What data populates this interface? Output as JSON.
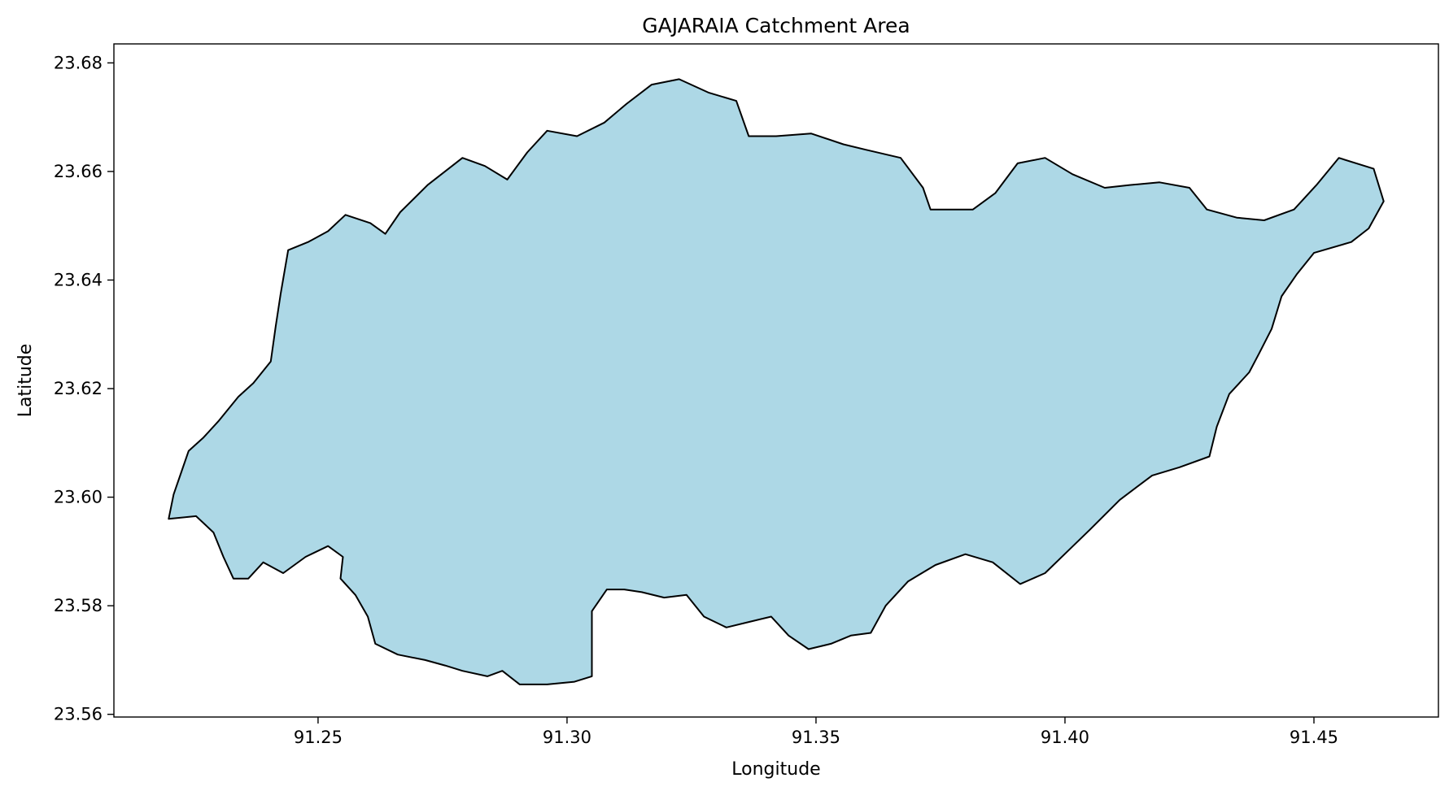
{
  "chart_data": {
    "type": "map",
    "title": "GAJARAIA Catchment Area",
    "xlabel": "Longitude",
    "ylabel": "Latitude",
    "xlim": [
      91.209,
      91.475
    ],
    "ylim": [
      23.5595,
      23.6835
    ],
    "xticks": [
      91.25,
      91.3,
      91.35,
      91.4,
      91.45
    ],
    "xtick_labels": [
      "91.25",
      "91.30",
      "91.35",
      "91.40",
      "91.45"
    ],
    "yticks": [
      23.56,
      23.58,
      23.6,
      23.62,
      23.64,
      23.66,
      23.68
    ],
    "ytick_labels": [
      "23.56",
      "23.58",
      "23.60",
      "23.62",
      "23.64",
      "23.66",
      "23.68"
    ],
    "grid": false,
    "colors": {
      "fill": "#add8e6",
      "edge": "#000000"
    },
    "boundary": [
      [
        91.22,
        23.596
      ],
      [
        91.221,
        23.6005
      ],
      [
        91.2225,
        23.6045
      ],
      [
        91.224,
        23.6085
      ],
      [
        91.227,
        23.611
      ],
      [
        91.23,
        23.614
      ],
      [
        91.234,
        23.6185
      ],
      [
        91.237,
        23.621
      ],
      [
        91.2405,
        23.625
      ],
      [
        91.2415,
        23.6315
      ],
      [
        91.2425,
        23.6375
      ],
      [
        91.244,
        23.6455
      ],
      [
        91.248,
        23.647
      ],
      [
        91.252,
        23.649
      ],
      [
        91.2555,
        23.652
      ],
      [
        91.2605,
        23.6505
      ],
      [
        91.2635,
        23.6485
      ],
      [
        91.2665,
        23.6525
      ],
      [
        91.272,
        23.6575
      ],
      [
        91.279,
        23.6625
      ],
      [
        91.2835,
        23.661
      ],
      [
        91.288,
        23.6585
      ],
      [
        91.292,
        23.6635
      ],
      [
        91.296,
        23.6675
      ],
      [
        91.302,
        23.6665
      ],
      [
        91.3075,
        23.669
      ],
      [
        91.312,
        23.6725
      ],
      [
        91.317,
        23.676
      ],
      [
        91.3225,
        23.677
      ],
      [
        91.3285,
        23.6745
      ],
      [
        91.334,
        23.673
      ],
      [
        91.3365,
        23.6665
      ],
      [
        91.342,
        23.6665
      ],
      [
        91.349,
        23.667
      ],
      [
        91.3555,
        23.665
      ],
      [
        91.36,
        23.664
      ],
      [
        91.367,
        23.6625
      ],
      [
        91.3715,
        23.657
      ],
      [
        91.373,
        23.653
      ],
      [
        91.3815,
        23.653
      ],
      [
        91.386,
        23.656
      ],
      [
        91.3905,
        23.6615
      ],
      [
        91.396,
        23.6625
      ],
      [
        91.4015,
        23.6595
      ],
      [
        91.408,
        23.657
      ],
      [
        91.413,
        23.6575
      ],
      [
        91.419,
        23.658
      ],
      [
        91.425,
        23.657
      ],
      [
        91.4285,
        23.653
      ],
      [
        91.4345,
        23.6515
      ],
      [
        91.44,
        23.651
      ],
      [
        91.446,
        23.653
      ],
      [
        91.4505,
        23.6575
      ],
      [
        91.455,
        23.6625
      ],
      [
        91.462,
        23.6605
      ],
      [
        91.464,
        23.6545
      ],
      [
        91.461,
        23.6495
      ],
      [
        91.4575,
        23.647
      ],
      [
        91.45,
        23.645
      ],
      [
        91.4465,
        23.641
      ],
      [
        91.4435,
        23.637
      ],
      [
        91.4415,
        23.631
      ],
      [
        91.439,
        23.6265
      ],
      [
        91.437,
        23.623
      ],
      [
        91.433,
        23.619
      ],
      [
        91.4305,
        23.613
      ],
      [
        91.429,
        23.6075
      ],
      [
        91.423,
        23.6055
      ],
      [
        91.4175,
        23.604
      ],
      [
        91.411,
        23.5995
      ],
      [
        91.405,
        23.594
      ],
      [
        91.4005,
        23.59
      ],
      [
        91.396,
        23.586
      ],
      [
        91.391,
        23.584
      ],
      [
        91.3855,
        23.588
      ],
      [
        91.38,
        23.5895
      ],
      [
        91.374,
        23.5875
      ],
      [
        91.3685,
        23.5845
      ],
      [
        91.364,
        23.58
      ],
      [
        91.361,
        23.575
      ],
      [
        91.357,
        23.5745
      ],
      [
        91.353,
        23.573
      ],
      [
        91.3485,
        23.572
      ],
      [
        91.3445,
        23.5745
      ],
      [
        91.341,
        23.578
      ],
      [
        91.3365,
        23.577
      ],
      [
        91.332,
        23.576
      ],
      [
        91.3275,
        23.578
      ],
      [
        91.324,
        23.582
      ],
      [
        91.3195,
        23.5815
      ],
      [
        91.315,
        23.5825
      ],
      [
        91.3115,
        23.583
      ],
      [
        91.308,
        23.583
      ],
      [
        91.305,
        23.579
      ],
      [
        91.305,
        23.573
      ],
      [
        91.305,
        23.567
      ],
      [
        91.3015,
        23.566
      ],
      [
        91.296,
        23.5655
      ],
      [
        91.2905,
        23.5655
      ],
      [
        91.287,
        23.568
      ],
      [
        91.284,
        23.567
      ],
      [
        91.279,
        23.568
      ],
      [
        91.2755,
        23.569
      ],
      [
        91.2715,
        23.57
      ],
      [
        91.266,
        23.571
      ],
      [
        91.2615,
        23.573
      ],
      [
        91.26,
        23.578
      ],
      [
        91.2575,
        23.582
      ],
      [
        91.2545,
        23.585
      ],
      [
        91.255,
        23.589
      ],
      [
        91.252,
        23.591
      ],
      [
        91.2475,
        23.589
      ],
      [
        91.243,
        23.586
      ],
      [
        91.239,
        23.588
      ],
      [
        91.236,
        23.585
      ],
      [
        91.233,
        23.585
      ],
      [
        91.231,
        23.589
      ],
      [
        91.229,
        23.5935
      ],
      [
        91.2255,
        23.5965
      ],
      [
        91.22,
        23.596
      ]
    ]
  }
}
